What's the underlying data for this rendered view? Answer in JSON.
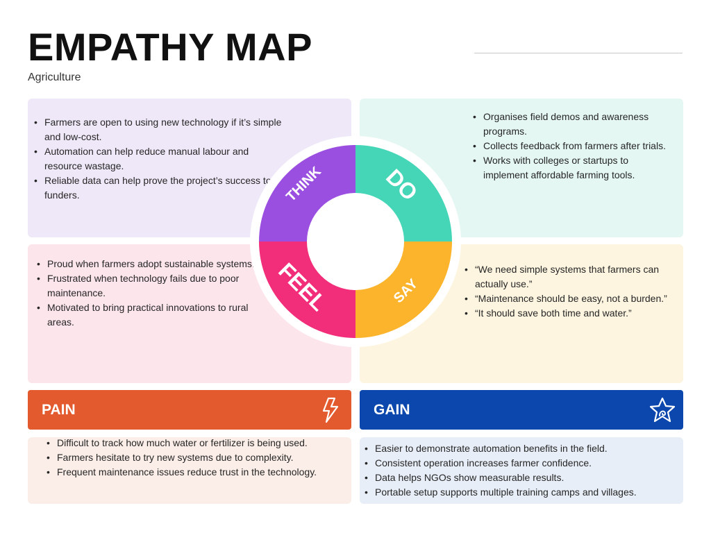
{
  "header": {
    "title": "EMPATHY MAP",
    "subtitle": "Agriculture"
  },
  "quadrants": {
    "think": {
      "label": "THINK",
      "color": "#9a4fe0",
      "items": [
        "Farmers are open to using new technology if it’s simple and low-cost.",
        "Automation can help reduce manual labour and resource wastage.",
        "Reliable data can help prove the project’s success to funders."
      ]
    },
    "do": {
      "label": "DO",
      "color": "#45d6b8",
      "items": [
        "Organises field demos and awareness programs.",
        "Collects feedback from farmers after trials.",
        "Works with colleges or startups to implement affordable farming tools."
      ]
    },
    "feel": {
      "label": "FEEL",
      "color": "#f22d7a",
      "items": [
        "Proud when farmers adopt sustainable systems.",
        "Frustrated when technology fails due to poor maintenance.",
        "Motivated to bring practical innovations to rural areas."
      ]
    },
    "say": {
      "label": "SAY",
      "color": "#fbb42c",
      "items": [
        "“We need simple systems that farmers can actually use.”",
        "“Maintenance should be easy, not a burden.”",
        "“It should save both time and water.”"
      ]
    }
  },
  "pain": {
    "label": "PAIN",
    "icon": "lightning-icon",
    "color": "#e45a2f",
    "items": [
      "Difficult to track how much water or fertilizer is being used.",
      "Farmers hesitate to try new systems due to complexity.",
      "Frequent maintenance issues reduce trust in the technology."
    ]
  },
  "gain": {
    "label": "GAIN",
    "icon": "star-icon",
    "color": "#0b47ad",
    "items": [
      "Easier to demonstrate automation benefits in the field.",
      "Consistent operation increases farmer confidence.",
      "Data helps NGOs show measurable results.",
      "Portable setup supports multiple training camps and villages."
    ]
  }
}
